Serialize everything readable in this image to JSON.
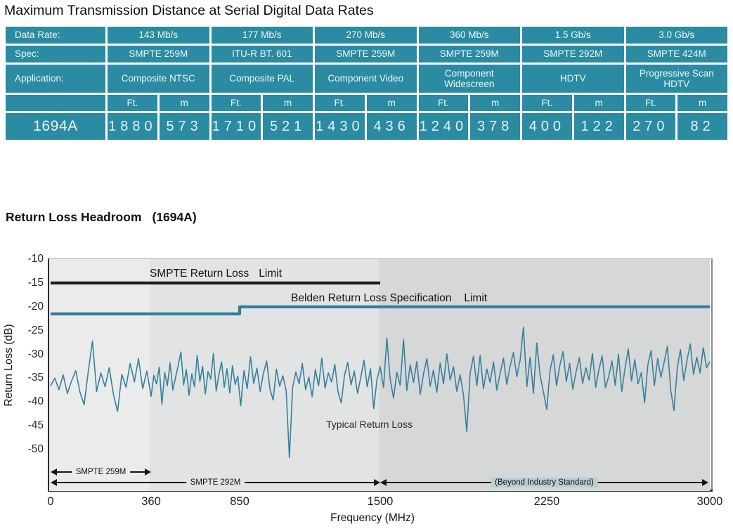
{
  "page": {
    "title": "Maximum Transmission Distance at Serial Digital Data Rates"
  },
  "table": {
    "row_labels": {
      "data_rate": "Data Rate:",
      "spec": "Spec:",
      "application": "Application:",
      "ft": "Ft.",
      "m": "m",
      "product": "1694A"
    },
    "columns": [
      {
        "data_rate": "143 Mb/s",
        "spec": "SMPTE 259M",
        "application": "Composite NTSC",
        "ft": "1880",
        "m": "573"
      },
      {
        "data_rate": "177 Mb/s",
        "spec": "ITU-R BT. 601",
        "application": "Composite PAL",
        "ft": "1710",
        "m": "521"
      },
      {
        "data_rate": "270 Mb/s",
        "spec": "SMPTE 259M",
        "application": "Component Video",
        "ft": "1430",
        "m": "436"
      },
      {
        "data_rate": "360 Mb/s",
        "spec": "SMPTE 259M",
        "application": "Component Widescreen",
        "ft": "1240",
        "m": "378"
      },
      {
        "data_rate": "1.5 Gb/s",
        "spec": "SMPTE 292M",
        "application": "HDTV",
        "ft": "400",
        "m": "122"
      },
      {
        "data_rate": "3.0 Gb/s",
        "spec": "SMPTE 424M",
        "application": "Progressive Scan HDTV",
        "ft": "270",
        "m": "82"
      }
    ]
  },
  "section": {
    "heading_part1": "Return Loss Headroom",
    "heading_part2": "(1694A)"
  },
  "chart_data": {
    "type": "line",
    "title": "Return Loss Headroom (1694A)",
    "xlabel": "Frequency (MHz)",
    "ylabel": "Return Loss (dB)",
    "x_ticks": [
      0,
      360,
      850,
      1500,
      2250,
      3000
    ],
    "y_ticks": [
      -10,
      -15,
      -20,
      -25,
      -30,
      -35,
      -40,
      -45,
      -50
    ],
    "xlim": [
      0,
      3000
    ],
    "ylim": [
      -58.7,
      -10
    ],
    "grid": false,
    "legend_position": "inline-annotations",
    "colors": {
      "limit_black": "#1c1c1c",
      "belden_teal": "#2e7f9c",
      "typical_teal": "#35819f",
      "band1": "#ebebeb",
      "band2": "#e2e3e3",
      "band3": "#d6d7d7",
      "beyond_label_bg": "#b9ced3",
      "table_teal": "#2a8ba2"
    },
    "background_bands": [
      {
        "from_mhz": 0,
        "to_mhz": 360,
        "color": "#ebebeb"
      },
      {
        "from_mhz": 360,
        "to_mhz": 1500,
        "color": "#e2e3e3"
      },
      {
        "from_mhz": 1500,
        "to_mhz": 3000,
        "color": "#d6d7d7"
      }
    ],
    "labels": {
      "smpte_part1": "SMPTE Return Loss",
      "smpte_part2": "Limit",
      "belden_part1": "Belden Return Loss Specification",
      "belden_part2": "Limit",
      "typical": "Typical Return Loss"
    },
    "series": [
      {
        "name": "SMPTE Return Loss Limit",
        "color": "#1c1c1c",
        "points": [
          [
            0,
            -15
          ],
          [
            1500,
            -15
          ]
        ]
      },
      {
        "name": "Belden Return Loss Specification Limit",
        "color": "#2e7f9c",
        "points": [
          [
            0,
            -21.5
          ],
          [
            850,
            -21.5
          ],
          [
            850,
            -20
          ],
          [
            3000,
            -20
          ]
        ]
      },
      {
        "name": "Typical Return Loss",
        "color": "#35819f",
        "x_start": 0,
        "x_step": 15,
        "values": [
          -36.6,
          -35.0,
          -37.4,
          -34.3,
          -38.2,
          -35.6,
          -33.4,
          -37.9,
          -40.6,
          -33.6,
          -27.2,
          -37.8,
          -33.9,
          -36.8,
          -32.8,
          -38.4,
          -42.0,
          -34.2,
          -36.9,
          -31.9,
          -35.8,
          -30.9,
          -37.2,
          -33.5,
          -38.8,
          -34.4,
          -36.2,
          -32.7,
          -40.5,
          -33.8,
          -36.6,
          -31.8,
          -37.5,
          -34.9,
          -32.3,
          -29.5,
          -36.4,
          -33.2,
          -38.6,
          -34.1,
          -36.8,
          -30.2,
          -35.7,
          -32.5,
          -38.3,
          -33.6,
          -35.2,
          -29.8,
          -37.7,
          -34.3,
          -31.6,
          -36.9,
          -33.0,
          -38.1,
          -32.4,
          -36.3,
          -34.6,
          -40.8,
          -33.4,
          -37.2,
          -30.5,
          -36.1,
          -32.9,
          -37.8,
          -34.0,
          -31.4,
          -37.3,
          -39.6,
          -33.1,
          -36.7,
          -34.5,
          -37.6,
          -51.7,
          -36.9,
          -33.7,
          -36.2,
          -31.9,
          -37.4,
          -34.8,
          -38.9,
          -33.2,
          -36.6,
          -30.8,
          -37.1,
          -33.9,
          -35.8,
          -32.1,
          -37.9,
          -40.2,
          -34.4,
          -31.7,
          -36.4,
          -33.5,
          -38.2,
          -34.9,
          -31.2,
          -36.8,
          -33.0,
          -41.4,
          -35.3,
          -32.6,
          -37.0,
          -26.6,
          -35.2,
          -39.2,
          -33.8,
          -36.5,
          -26.9,
          -37.6,
          -32.2,
          -35.9,
          -31.5,
          -38.4,
          -34.1,
          -30.9,
          -36.7,
          -33.3,
          -38.0,
          -31.8,
          -36.2,
          -29.9,
          -35.4,
          -32.6,
          -37.8,
          -34.3,
          -38.6,
          -46.2,
          -33.9,
          -30.4,
          -36.6,
          -30.2,
          -37.2,
          -33.1,
          -35.9,
          -31.6,
          -37.5,
          -34.0,
          -30.8,
          -36.3,
          -32.4,
          -29.6,
          -34.7,
          -31.2,
          -24.3,
          -36.8,
          -30.6,
          -38.2,
          -27.6,
          -34.4,
          -37.9,
          -41.6,
          -33.5,
          -30.1,
          -36.6,
          -32.3,
          -29.4,
          -35.7,
          -31.9,
          -37.3,
          -33.6,
          -30.7,
          -36.1,
          -32.8,
          -35.4,
          -29.8,
          -36.9,
          -33.2,
          -30.3,
          -37.0,
          -34.6,
          -31.4,
          -36.5,
          -30.0,
          -37.8,
          -32.9,
          -28.9,
          -35.6,
          -31.1,
          -36.2,
          -33.8,
          -40.2,
          -32.2,
          -29.2,
          -36.6,
          -30.9,
          -34.8,
          -31.7,
          -28.3,
          -37.4,
          -41.8,
          -33.0,
          -29.0,
          -35.5,
          -31.3,
          -27.8,
          -34.2,
          -30.6,
          -33.9,
          -28.6,
          -32.8,
          -31.5
        ]
      }
    ],
    "annotations": [
      {
        "label": "SMPTE 259M",
        "from_mhz": 0,
        "to_mhz": 360,
        "row": 1,
        "label_bg": "#ebebeb"
      },
      {
        "label": "SMPTE 292M",
        "from_mhz": 0,
        "to_mhz": 1500,
        "row": 2,
        "label_bg": "#e2e3e3"
      },
      {
        "label": "(Beyond Industry Standard)",
        "from_mhz": 1500,
        "to_mhz": 3000,
        "row": 2,
        "label_bg": "#b9ced3"
      }
    ]
  }
}
